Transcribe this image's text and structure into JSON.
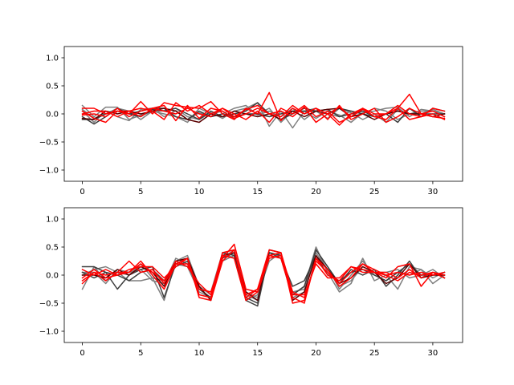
{
  "chart_data": [
    {
      "type": "line",
      "xlim": [
        -1.55,
        32.55
      ],
      "ylim": [
        -1.2,
        1.2
      ],
      "xticks": [
        0,
        5,
        10,
        15,
        20,
        25,
        30
      ],
      "yticks": [
        -1.0,
        -0.5,
        0.0,
        0.5,
        1.0
      ],
      "grid": false,
      "legend": "none",
      "x": [
        0,
        1,
        2,
        3,
        4,
        5,
        6,
        7,
        8,
        9,
        10,
        11,
        12,
        13,
        14,
        15,
        16,
        17,
        18,
        19,
        20,
        21,
        22,
        23,
        24,
        25,
        26,
        27,
        28,
        29,
        30,
        31
      ],
      "series": [
        {
          "color": "#7f7f7f",
          "values": [
            0.15,
            -0.05,
            0.12,
            0.12,
            -0.1,
            -0.02,
            0.03,
            0.06,
            0.1,
            -0.05,
            -0.1,
            0.02,
            -0.08,
            0.05,
            0.1,
            0.2,
            -0.22,
            0.05,
            -0.25,
            0.05,
            -0.08,
            0.05,
            -0.02,
            -0.15,
            0.02,
            0.05,
            0.1,
            0.12,
            -0.05,
            0.08,
            0.05,
            0.0
          ]
        },
        {
          "color": "#7f7f7f",
          "values": [
            0.05,
            -0.15,
            0.05,
            -0.05,
            -0.12,
            0.08,
            0.1,
            -0.05,
            0.06,
            -0.1,
            0.02,
            -0.05,
            0.0,
            0.1,
            0.15,
            -0.02,
            0.05,
            -0.05,
            0.1,
            -0.1,
            0.05,
            -0.08,
            0.1,
            0.02,
            -0.1,
            0.0,
            -0.15,
            0.08,
            0.0,
            0.05,
            0.05,
            -0.05
          ]
        },
        {
          "color": "#7f7f7f",
          "values": [
            0.08,
            -0.08,
            0.0,
            0.1,
            0.05,
            -0.1,
            0.05,
            0.0,
            -0.05,
            -0.15,
            0.1,
            0.0,
            0.05,
            -0.1,
            0.1,
            0.0,
            0.1,
            -0.15,
            0.05,
            0.05,
            0.1,
            0.0,
            -0.05,
            0.05,
            0.0,
            0.1,
            0.05,
            -0.1,
            0.0,
            0.0,
            0.08,
            0.0
          ]
        },
        {
          "color": "#3d3d3d",
          "values": [
            -0.05,
            -0.18,
            -0.05,
            0.1,
            0.0,
            -0.05,
            0.08,
            0.05,
            0.1,
            0.0,
            -0.1,
            0.05,
            -0.05,
            0.0,
            0.05,
            0.2,
            0.0,
            -0.1,
            0.0,
            0.1,
            0.05,
            0.0,
            0.1,
            0.05,
            0.0,
            -0.05,
            0.0,
            -0.15,
            0.1,
            -0.05,
            0.1,
            0.05
          ]
        },
        {
          "color": "#3d3d3d",
          "values": [
            -0.1,
            -0.1,
            0.0,
            0.05,
            0.0,
            0.05,
            0.1,
            0.1,
            -0.05,
            -0.1,
            0.05,
            -0.05,
            0.0,
            -0.05,
            0.0,
            0.0,
            -0.05,
            0.0,
            0.05,
            0.05,
            0.05,
            0.08,
            -0.05,
            0.0,
            0.05,
            -0.05,
            0.0,
            0.05,
            0.0,
            0.0,
            0.0,
            0.0
          ]
        },
        {
          "color": "#5a0000",
          "values": [
            -0.08,
            -0.1,
            0.05,
            0.0,
            0.05,
            0.0,
            0.05,
            0.1,
            0.05,
            -0.1,
            -0.15,
            0.0,
            -0.05,
            0.05,
            0.0,
            -0.05,
            0.0,
            -0.1,
            0.05,
            -0.05,
            0.05,
            0.08,
            0.1,
            -0.05,
            0.0,
            -0.1,
            0.0,
            0.05,
            0.0,
            0.0,
            -0.05,
            0.0
          ]
        },
        {
          "color": "#ff0000",
          "values": [
            0.1,
            0.1,
            0.0,
            0.05,
            0.0,
            0.22,
            0.0,
            0.2,
            0.15,
            0.12,
            0.1,
            0.22,
            0.0,
            -0.1,
            0.1,
            0.0,
            0.38,
            -0.12,
            0.1,
            0.0,
            0.1,
            0.0,
            -0.2,
            0.0,
            0.1,
            -0.05,
            0.0,
            0.1,
            0.35,
            0.0,
            -0.05,
            -0.08
          ]
        },
        {
          "color": "#ff0000",
          "values": [
            0.05,
            -0.08,
            -0.15,
            0.05,
            0.05,
            0.1,
            0.05,
            -0.1,
            0.2,
            0.05,
            0.15,
            0.0,
            0.1,
            -0.05,
            0.08,
            0.15,
            0.0,
            -0.05,
            0.15,
            0.0,
            0.1,
            -0.1,
            0.15,
            -0.1,
            0.0,
            0.1,
            -0.15,
            -0.05,
            0.1,
            0.0,
            0.05,
            -0.05
          ]
        },
        {
          "color": "#ff0000",
          "values": [
            -0.02,
            0.0,
            -0.05,
            0.1,
            -0.05,
            0.05,
            0.1,
            0.15,
            -0.12,
            0.15,
            -0.08,
            0.1,
            0.05,
            -0.08,
            0.0,
            0.1,
            0.0,
            0.05,
            -0.05,
            0.12,
            -0.15,
            0.0,
            0.12,
            -0.05,
            0.1,
            0.0,
            0.0,
            0.15,
            0.0,
            -0.05,
            0.1,
            0.05
          ]
        },
        {
          "color": "#ff0000",
          "values": [
            0.0,
            0.05,
            0.05,
            -0.05,
            0.05,
            -0.05,
            0.1,
            0.05,
            0.0,
            0.1,
            0.0,
            -0.05,
            0.1,
            0.0,
            -0.1,
            0.05,
            -0.15,
            0.1,
            0.0,
            0.15,
            -0.05,
            0.05,
            -0.15,
            -0.05,
            0.08,
            -0.05,
            -0.1,
            0.1,
            -0.1,
            -0.05,
            0.0,
            -0.1
          ]
        }
      ]
    },
    {
      "type": "line",
      "xlim": [
        -1.55,
        32.55
      ],
      "ylim": [
        -1.2,
        1.2
      ],
      "xticks": [
        0,
        5,
        10,
        15,
        20,
        25,
        30
      ],
      "yticks": [
        -1.0,
        -0.5,
        0.0,
        0.5,
        1.0
      ],
      "grid": false,
      "legend": "none",
      "x": [
        0,
        1,
        2,
        3,
        4,
        5,
        6,
        7,
        8,
        9,
        10,
        11,
        12,
        13,
        14,
        15,
        16,
        17,
        18,
        19,
        20,
        21,
        22,
        23,
        24,
        25,
        26,
        27,
        28,
        29,
        30,
        31
      ],
      "series": [
        {
          "color": "#7f7f7f",
          "values": [
            -0.25,
            0.15,
            -0.1,
            0.05,
            0.0,
            0.2,
            -0.05,
            -0.45,
            0.25,
            0.35,
            -0.2,
            -0.35,
            0.25,
            0.35,
            -0.45,
            -0.35,
            0.25,
            0.4,
            -0.35,
            -0.2,
            0.5,
            0.05,
            -0.3,
            -0.15,
            0.3,
            -0.1,
            0.0,
            -0.25,
            0.15,
            0.1,
            -0.05,
            0.05
          ]
        },
        {
          "color": "#7f7f7f",
          "values": [
            0.0,
            0.1,
            0.15,
            0.05,
            -0.1,
            -0.1,
            -0.05,
            -0.1,
            0.2,
            0.15,
            -0.3,
            -0.4,
            0.3,
            0.45,
            -0.3,
            -0.4,
            0.4,
            0.35,
            -0.3,
            -0.25,
            0.45,
            0.15,
            -0.25,
            0.0,
            0.25,
            0.0,
            -0.1,
            0.05,
            0.0,
            0.1,
            -0.15,
            0.0
          ]
        },
        {
          "color": "#7f7f7f",
          "values": [
            0.05,
            0.05,
            -0.15,
            0.1,
            0.05,
            0.1,
            -0.1,
            -0.15,
            0.3,
            0.2,
            -0.25,
            -0.3,
            0.4,
            0.3,
            -0.35,
            -0.45,
            0.35,
            0.3,
            -0.4,
            -0.3,
            0.4,
            0.1,
            -0.2,
            -0.1,
            0.15,
            0.05,
            0.05,
            0.1,
            -0.05,
            0.0,
            0.1,
            -0.05
          ]
        },
        {
          "color": "#3d3d3d",
          "values": [
            0.15,
            0.15,
            0.05,
            -0.25,
            0.0,
            0.1,
            0.15,
            -0.4,
            0.2,
            0.3,
            -0.25,
            -0.4,
            0.4,
            0.35,
            -0.4,
            -0.5,
            0.4,
            0.35,
            -0.35,
            -0.2,
            0.45,
            0.15,
            -0.15,
            0.1,
            0.0,
            0.1,
            -0.2,
            0.0,
            0.25,
            -0.05,
            0.05,
            -0.05
          ]
        },
        {
          "color": "#3d3d3d",
          "values": [
            0.05,
            -0.05,
            0.05,
            0.0,
            -0.1,
            0.05,
            0.1,
            -0.1,
            0.15,
            0.25,
            -0.2,
            -0.45,
            0.3,
            0.4,
            -0.45,
            -0.55,
            0.4,
            0.3,
            -0.2,
            -0.1,
            0.35,
            0.0,
            -0.1,
            0.05,
            0.1,
            0.0,
            -0.1,
            0.05,
            0.2,
            0.0,
            0.0,
            0.05
          ]
        },
        {
          "color": "#5a0000",
          "values": [
            0.0,
            0.0,
            -0.05,
            0.1,
            0.0,
            0.15,
            0.05,
            -0.2,
            0.25,
            0.3,
            -0.2,
            -0.45,
            0.35,
            0.4,
            -0.3,
            -0.45,
            0.45,
            0.4,
            -0.45,
            -0.3,
            0.35,
            0.1,
            -0.15,
            -0.05,
            0.15,
            0.05,
            -0.15,
            -0.05,
            0.2,
            -0.05,
            0.0,
            0.0
          ]
        },
        {
          "color": "#ff0000",
          "values": [
            -0.1,
            0.05,
            0.0,
            0.05,
            0.25,
            0.05,
            0.1,
            -0.15,
            0.2,
            0.2,
            -0.25,
            -0.3,
            0.3,
            0.55,
            -0.25,
            -0.3,
            0.35,
            0.3,
            -0.4,
            -0.5,
            0.3,
            0.1,
            -0.2,
            -0.05,
            0.2,
            0.05,
            -0.05,
            0.15,
            0.2,
            -0.2,
            0.05,
            -0.05
          ]
        },
        {
          "color": "#ff0000",
          "values": [
            0.1,
            0.0,
            0.1,
            0.0,
            0.05,
            0.25,
            0.0,
            -0.25,
            0.2,
            0.3,
            -0.4,
            -0.45,
            0.25,
            0.45,
            -0.35,
            -0.25,
            0.45,
            0.4,
            -0.5,
            -0.45,
            0.3,
            0.0,
            -0.1,
            0.15,
            0.05,
            0.05,
            0.0,
            0.05,
            0.0,
            0.05,
            0.0,
            0.05
          ]
        },
        {
          "color": "#ff0000",
          "values": [
            -0.15,
            0.05,
            -0.1,
            0.05,
            0.05,
            0.2,
            0.05,
            -0.1,
            0.25,
            0.15,
            -0.15,
            -0.35,
            0.4,
            0.45,
            -0.4,
            -0.25,
            0.35,
            0.4,
            -0.3,
            -0.4,
            0.25,
            0.05,
            -0.15,
            0.05,
            0.2,
            0.1,
            0.0,
            -0.1,
            0.05,
            0.0,
            0.05,
            0.0
          ]
        },
        {
          "color": "#ff0000",
          "values": [
            -0.05,
            0.1,
            -0.05,
            0.0,
            0.1,
            0.15,
            0.15,
            -0.05,
            0.15,
            0.3,
            -0.35,
            -0.4,
            0.35,
            0.3,
            -0.45,
            -0.3,
            0.3,
            0.35,
            -0.35,
            -0.35,
            0.2,
            -0.05,
            -0.05,
            0.15,
            0.1,
            0.05,
            0.05,
            -0.05,
            0.1,
            -0.05,
            0.05,
            0.0
          ]
        }
      ]
    }
  ]
}
